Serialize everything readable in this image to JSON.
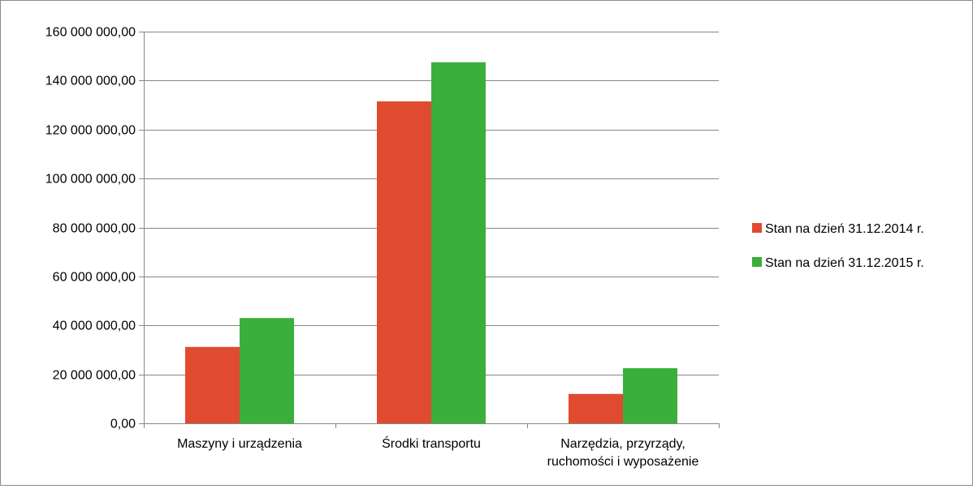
{
  "chart_data": {
    "type": "bar",
    "title": "",
    "xlabel": "",
    "ylabel": "",
    "categories": [
      [
        "Maszyny i urządzenia"
      ],
      [
        "Środki transportu"
      ],
      [
        "Narzędzia, przyrządy,",
        "ruchomości i wyposażenie"
      ]
    ],
    "series": [
      {
        "name": "Stan na dzień 31.12.2014 r.",
        "color": "#E04A2F",
        "values": [
          31200000,
          131500000,
          12000000
        ]
      },
      {
        "name": "Stan na dzień 31.12.2015 r.",
        "color": "#3AAF3A",
        "values": [
          43000000,
          147500000,
          22500000
        ]
      }
    ],
    "ylim": [
      0,
      160000000
    ],
    "yticks": [
      0,
      20000000,
      40000000,
      60000000,
      80000000,
      100000000,
      120000000,
      140000000,
      160000000
    ],
    "ytick_labels": [
      "0,00",
      "20 000 000,00",
      "40 000 000,00",
      "60 000 000,00",
      "80 000 000,00",
      "100 000 000,00",
      "120 000 000,00",
      "140 000 000,00",
      "160 000 000,00"
    ],
    "grid": true,
    "legend_position": "right",
    "colors": {
      "grid": "#868686",
      "axis": "#868686"
    }
  }
}
